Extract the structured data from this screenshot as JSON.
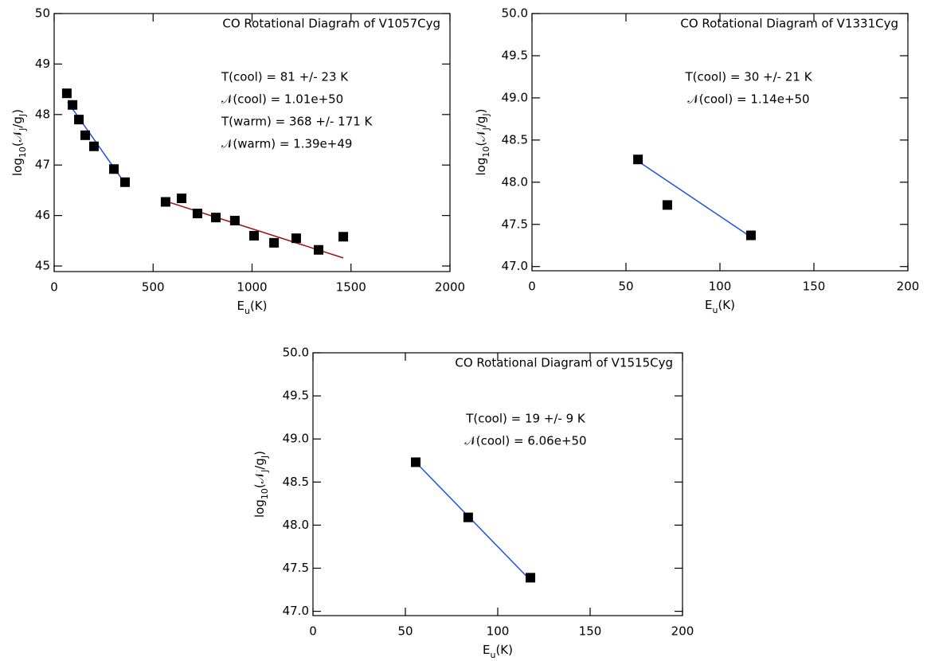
{
  "chart_data": [
    {
      "type": "scatter",
      "title": "CO Rotational Diagram of V1057Cyg",
      "xlabel": [
        "E",
        "u",
        "(K)"
      ],
      "ylabel": [
        "log",
        "10",
        "(𝒩",
        "J",
        "/g",
        "J",
        ")"
      ],
      "annotations": [
        "T(cool) = 81 +/- 23 K",
        "𝒩(cool) = 1.01e+50",
        "T(warm) = 368 +/- 171 K",
        "𝒩(warm) = 1.39e+49"
      ],
      "xlim": [
        0,
        2000
      ],
      "xticks": [
        0,
        500,
        1000,
        1500,
        2000
      ],
      "ylim": [
        44.89,
        50
      ],
      "yticks": [
        45,
        46,
        47,
        48,
        49,
        50
      ],
      "color": "#000000",
      "x": [
        64,
        93,
        125,
        157,
        201,
        302,
        358,
        563,
        644,
        724,
        817,
        913,
        1010,
        1111,
        1223,
        1336,
        1461
      ],
      "y": [
        48.42,
        48.19,
        47.9,
        47.59,
        47.37,
        46.92,
        46.66,
        46.27,
        46.34,
        46.04,
        45.96,
        45.9,
        45.6,
        45.46,
        45.55,
        45.32,
        45.58
      ],
      "fits": [
        {
          "color": "#1f4fe6",
          "x": [
            68,
            366
          ],
          "y": [
            48.25,
            46.59
          ]
        },
        {
          "color": "#a01010",
          "x": [
            559,
            1461
          ],
          "y": [
            46.29,
            45.16
          ]
        }
      ]
    },
    {
      "type": "scatter",
      "title": "CO Rotational Diagram of V1331Cyg",
      "xlabel": [
        "E",
        "u",
        "(K)"
      ],
      "ylabel": [
        "log",
        "10",
        "(𝒩",
        "J",
        "/g",
        "J",
        ")"
      ],
      "annotations": [
        "T(cool) = 30 +/- 21 K",
        "𝒩(cool) = 1.14e+50"
      ],
      "xlim": [
        0,
        200
      ],
      "xticks": [
        0,
        50,
        100,
        150,
        200
      ],
      "ylim": [
        46.95,
        50
      ],
      "yticks": [
        {
          "value": 47,
          "label": "47.0"
        },
        47.5,
        {
          "value": 48,
          "label": "48.0"
        },
        48.5,
        {
          "value": 49,
          "label": "49.0"
        },
        49.5,
        {
          "value": 50,
          "label": "50.0"
        }
      ],
      "color": "#000000",
      "x": [
        56.4,
        72,
        116.5
      ],
      "y": [
        48.27,
        47.73,
        47.37
      ],
      "fits": [
        {
          "color": "#1f4fe6",
          "x": [
            56.4,
            116.5
          ],
          "y": [
            48.25,
            47.35
          ]
        }
      ]
    },
    {
      "type": "scatter",
      "title": "CO Rotational Diagram of V1515Cyg",
      "xlabel": [
        "E",
        "u",
        "(K)"
      ],
      "ylabel": [
        "log",
        "10",
        "(𝒩",
        "J",
        "/g",
        "J",
        ")"
      ],
      "annotations": [
        "T(cool) = 19 +/- 9 K",
        "𝒩(cool) = 6.06e+50"
      ],
      "xlim": [
        0,
        200
      ],
      "xticks": [
        0,
        50,
        100,
        150,
        200
      ],
      "ylim": [
        46.95,
        50
      ],
      "yticks": [
        {
          "value": 47,
          "label": "47.0"
        },
        47.5,
        {
          "value": 48,
          "label": "48.0"
        },
        48.5,
        {
          "value": 49,
          "label": "49.0"
        },
        49.5,
        {
          "value": 50,
          "label": "50.0"
        }
      ],
      "color": "#000000",
      "x": [
        55.6,
        84,
        117.7
      ],
      "y": [
        48.73,
        48.09,
        47.39
      ],
      "fits": [
        {
          "color": "#1f4fe6",
          "x": [
            55.6,
            117.7
          ],
          "y": [
            48.73,
            47.36
          ]
        }
      ]
    }
  ]
}
